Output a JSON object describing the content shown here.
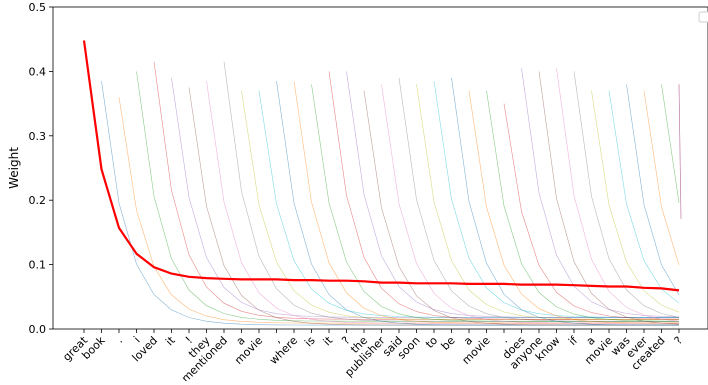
{
  "chart_data": {
    "type": "line",
    "title": "",
    "xlabel": "",
    "ylabel": "Weight",
    "ylim": [
      0,
      0.5
    ],
    "yticks": [
      "0.0",
      "0.1",
      "0.2",
      "0.3",
      "0.4",
      "0.5"
    ],
    "legend": "top-right (empty)",
    "grid": false,
    "tokens": [
      "great",
      "book",
      ".",
      "i",
      "loved",
      "it",
      "!",
      "they",
      "mentioned",
      "a",
      "movie",
      ",",
      "where",
      "is",
      "it",
      "?",
      "the",
      "publisher",
      "said",
      "soon",
      "to",
      "be",
      "a",
      "movie",
      ".",
      "does",
      "anyone",
      "know",
      "if",
      "a",
      "movie",
      "was",
      "ever",
      "created",
      "?"
    ],
    "series": [
      {
        "name": "",
        "color": "#ff0000",
        "values": [
          0.448,
          0.248,
          0.157,
          0.117,
          0.096,
          0.086,
          0.081,
          0.079,
          0.078,
          0.077,
          0.077,
          0.077,
          0.076,
          0.076,
          0.075,
          0.075,
          0.074,
          0.072,
          0.072,
          0.071,
          0.071,
          0.071,
          0.07,
          0.07,
          0.07,
          0.069,
          0.069,
          0.069,
          0.068,
          0.067,
          0.066,
          0.066,
          0.064,
          0.063,
          0.06
        ]
      }
    ],
    "background_lines": {
      "peaks": [
        0.385,
        0.36,
        0.4,
        0.415,
        0.39,
        0.375,
        0.385,
        0.415,
        0.37,
        0.37,
        0.385,
        0.385,
        0.38,
        0.4,
        0.4,
        0.37,
        0.38,
        0.39,
        0.38,
        0.385,
        0.39,
        0.37,
        0.37,
        0.35,
        0.405,
        0.4,
        0.405,
        0.4,
        0.37,
        0.37,
        0.38,
        0.37,
        0.38,
        0.38,
        0.38
      ],
      "colors": [
        "#1f77b4",
        "#ff7f0e",
        "#2ca02c",
        "#d62728",
        "#9467bd",
        "#8c564b",
        "#e377c2",
        "#7f7f7f",
        "#bcbd22",
        "#17becf"
      ]
    }
  }
}
